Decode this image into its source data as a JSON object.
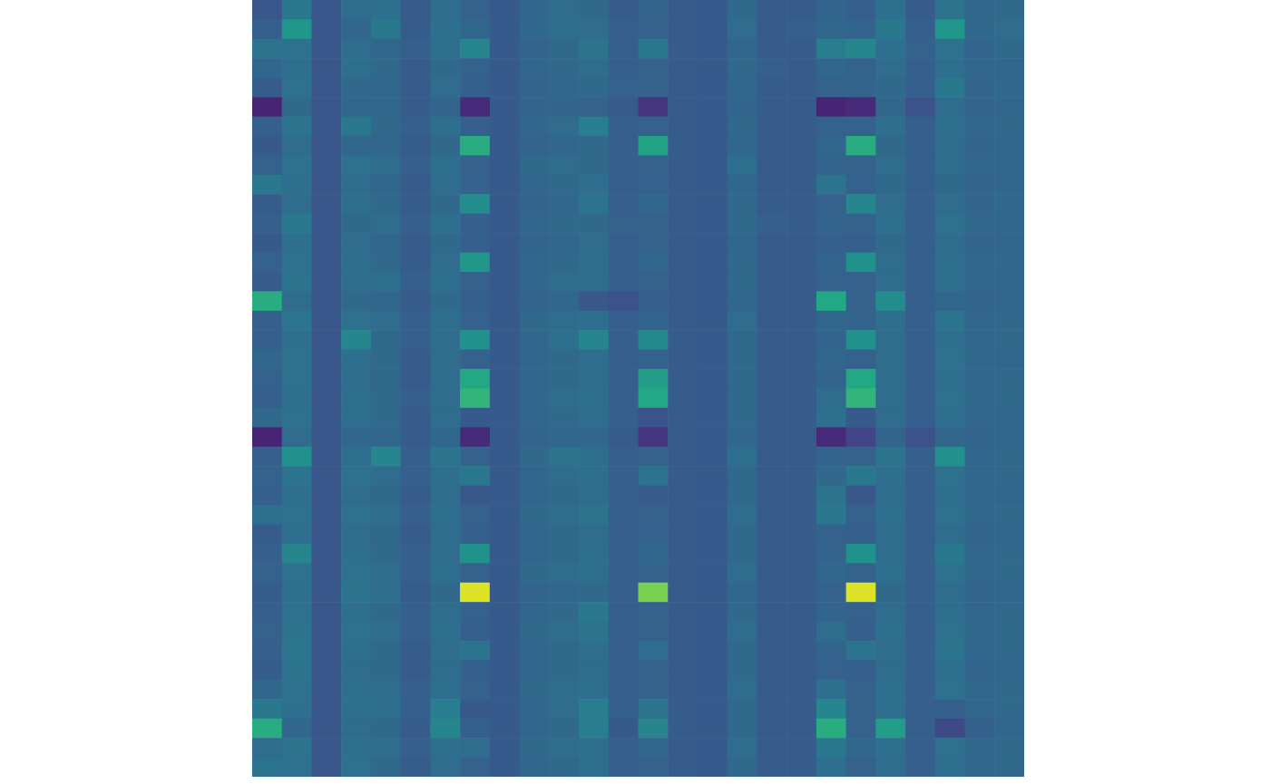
{
  "chart_data": {
    "type": "heatmap",
    "tick_labels": false,
    "zlim": [
      0,
      1
    ],
    "cells": [
      [
        0.27,
        0.4,
        0.27,
        0.35,
        0.36,
        0.29,
        0.35,
        0.31,
        0.28,
        0.33,
        0.35,
        0.34,
        0.29,
        0.32,
        0.29,
        0.28,
        0.34,
        0.29,
        0.29,
        0.32,
        0.3,
        0.36,
        0.29,
        0.38,
        0.33,
        0.34
      ],
      [
        0.3,
        0.52,
        0.27,
        0.33,
        0.4,
        0.29,
        0.36,
        0.33,
        0.28,
        0.34,
        0.36,
        0.35,
        0.3,
        0.31,
        0.29,
        0.28,
        0.35,
        0.29,
        0.3,
        0.33,
        0.32,
        0.4,
        0.3,
        0.52,
        0.34,
        0.35
      ],
      [
        0.38,
        0.37,
        0.27,
        0.35,
        0.33,
        0.3,
        0.36,
        0.45,
        0.28,
        0.32,
        0.34,
        0.38,
        0.3,
        0.4,
        0.29,
        0.28,
        0.33,
        0.29,
        0.29,
        0.42,
        0.45,
        0.36,
        0.31,
        0.37,
        0.32,
        0.34
      ],
      [
        0.33,
        0.36,
        0.27,
        0.36,
        0.34,
        0.29,
        0.34,
        0.31,
        0.28,
        0.33,
        0.34,
        0.35,
        0.3,
        0.31,
        0.29,
        0.28,
        0.34,
        0.3,
        0.29,
        0.33,
        0.31,
        0.35,
        0.3,
        0.36,
        0.33,
        0.33
      ],
      [
        0.29,
        0.37,
        0.27,
        0.34,
        0.33,
        0.29,
        0.35,
        0.3,
        0.28,
        0.32,
        0.33,
        0.34,
        0.31,
        0.31,
        0.29,
        0.28,
        0.33,
        0.29,
        0.29,
        0.31,
        0.32,
        0.34,
        0.3,
        0.4,
        0.32,
        0.34
      ],
      [
        0.1,
        0.34,
        0.27,
        0.33,
        0.33,
        0.29,
        0.32,
        0.12,
        0.28,
        0.32,
        0.32,
        0.31,
        0.29,
        0.15,
        0.29,
        0.28,
        0.32,
        0.29,
        0.29,
        0.1,
        0.12,
        0.33,
        0.25,
        0.35,
        0.32,
        0.33
      ],
      [
        0.3,
        0.38,
        0.27,
        0.4,
        0.34,
        0.3,
        0.36,
        0.3,
        0.28,
        0.33,
        0.35,
        0.42,
        0.3,
        0.31,
        0.29,
        0.28,
        0.34,
        0.29,
        0.29,
        0.31,
        0.31,
        0.36,
        0.3,
        0.36,
        0.33,
        0.34
      ],
      [
        0.28,
        0.35,
        0.27,
        0.33,
        0.33,
        0.29,
        0.34,
        0.62,
        0.28,
        0.32,
        0.33,
        0.34,
        0.3,
        0.58,
        0.29,
        0.28,
        0.33,
        0.29,
        0.29,
        0.33,
        0.62,
        0.34,
        0.3,
        0.35,
        0.32,
        0.33
      ],
      [
        0.31,
        0.37,
        0.27,
        0.37,
        0.35,
        0.3,
        0.36,
        0.31,
        0.28,
        0.34,
        0.35,
        0.34,
        0.3,
        0.31,
        0.29,
        0.28,
        0.36,
        0.29,
        0.29,
        0.32,
        0.31,
        0.35,
        0.3,
        0.35,
        0.33,
        0.33
      ],
      [
        0.4,
        0.36,
        0.27,
        0.35,
        0.33,
        0.29,
        0.35,
        0.31,
        0.28,
        0.33,
        0.34,
        0.36,
        0.3,
        0.31,
        0.29,
        0.28,
        0.33,
        0.29,
        0.29,
        0.38,
        0.31,
        0.34,
        0.3,
        0.34,
        0.32,
        0.33
      ],
      [
        0.29,
        0.35,
        0.27,
        0.36,
        0.34,
        0.29,
        0.34,
        0.48,
        0.28,
        0.32,
        0.33,
        0.38,
        0.3,
        0.33,
        0.29,
        0.28,
        0.34,
        0.29,
        0.29,
        0.31,
        0.45,
        0.35,
        0.3,
        0.35,
        0.32,
        0.34
      ],
      [
        0.3,
        0.4,
        0.27,
        0.34,
        0.35,
        0.3,
        0.36,
        0.3,
        0.28,
        0.33,
        0.34,
        0.34,
        0.31,
        0.31,
        0.29,
        0.28,
        0.34,
        0.3,
        0.29,
        0.32,
        0.31,
        0.36,
        0.3,
        0.37,
        0.33,
        0.33
      ],
      [
        0.28,
        0.36,
        0.27,
        0.35,
        0.33,
        0.29,
        0.34,
        0.3,
        0.28,
        0.32,
        0.33,
        0.35,
        0.3,
        0.31,
        0.29,
        0.28,
        0.33,
        0.29,
        0.29,
        0.3,
        0.3,
        0.34,
        0.3,
        0.35,
        0.32,
        0.33
      ],
      [
        0.31,
        0.37,
        0.27,
        0.36,
        0.34,
        0.29,
        0.35,
        0.52,
        0.28,
        0.33,
        0.34,
        0.36,
        0.3,
        0.33,
        0.29,
        0.28,
        0.34,
        0.29,
        0.29,
        0.32,
        0.5,
        0.35,
        0.3,
        0.36,
        0.33,
        0.34
      ],
      [
        0.29,
        0.38,
        0.27,
        0.35,
        0.36,
        0.3,
        0.36,
        0.31,
        0.28,
        0.33,
        0.35,
        0.35,
        0.3,
        0.31,
        0.29,
        0.28,
        0.34,
        0.29,
        0.29,
        0.31,
        0.31,
        0.35,
        0.3,
        0.36,
        0.33,
        0.33
      ],
      [
        0.62,
        0.35,
        0.27,
        0.34,
        0.33,
        0.29,
        0.34,
        0.3,
        0.28,
        0.32,
        0.33,
        0.27,
        0.25,
        0.3,
        0.29,
        0.28,
        0.33,
        0.29,
        0.29,
        0.6,
        0.31,
        0.48,
        0.3,
        0.33,
        0.32,
        0.33
      ],
      [
        0.3,
        0.39,
        0.27,
        0.37,
        0.35,
        0.3,
        0.36,
        0.31,
        0.28,
        0.34,
        0.35,
        0.36,
        0.3,
        0.32,
        0.29,
        0.28,
        0.35,
        0.29,
        0.29,
        0.33,
        0.32,
        0.36,
        0.3,
        0.38,
        0.33,
        0.34
      ],
      [
        0.3,
        0.36,
        0.27,
        0.45,
        0.34,
        0.3,
        0.35,
        0.5,
        0.28,
        0.33,
        0.36,
        0.45,
        0.3,
        0.47,
        0.29,
        0.28,
        0.34,
        0.29,
        0.29,
        0.32,
        0.5,
        0.35,
        0.3,
        0.36,
        0.33,
        0.34
      ],
      [
        0.33,
        0.37,
        0.27,
        0.36,
        0.34,
        0.29,
        0.35,
        0.31,
        0.28,
        0.33,
        0.34,
        0.35,
        0.3,
        0.31,
        0.29,
        0.28,
        0.34,
        0.29,
        0.29,
        0.33,
        0.31,
        0.35,
        0.3,
        0.37,
        0.33,
        0.33
      ],
      [
        0.31,
        0.37,
        0.27,
        0.35,
        0.34,
        0.29,
        0.35,
        0.6,
        0.28,
        0.33,
        0.34,
        0.35,
        0.3,
        0.55,
        0.29,
        0.28,
        0.34,
        0.29,
        0.29,
        0.32,
        0.6,
        0.35,
        0.3,
        0.36,
        0.33,
        0.34
      ],
      [
        0.3,
        0.36,
        0.27,
        0.36,
        0.34,
        0.3,
        0.35,
        0.65,
        0.28,
        0.33,
        0.35,
        0.36,
        0.3,
        0.6,
        0.29,
        0.28,
        0.34,
        0.29,
        0.29,
        0.35,
        0.65,
        0.35,
        0.3,
        0.37,
        0.33,
        0.34
      ],
      [
        0.34,
        0.37,
        0.27,
        0.36,
        0.34,
        0.29,
        0.35,
        0.28,
        0.28,
        0.33,
        0.34,
        0.35,
        0.3,
        0.25,
        0.29,
        0.28,
        0.34,
        0.29,
        0.29,
        0.36,
        0.28,
        0.35,
        0.3,
        0.36,
        0.33,
        0.33
      ],
      [
        0.1,
        0.35,
        0.27,
        0.33,
        0.33,
        0.29,
        0.33,
        0.12,
        0.28,
        0.32,
        0.33,
        0.33,
        0.29,
        0.15,
        0.29,
        0.28,
        0.33,
        0.29,
        0.29,
        0.12,
        0.2,
        0.32,
        0.25,
        0.33,
        0.32,
        0.33
      ],
      [
        0.3,
        0.5,
        0.27,
        0.36,
        0.45,
        0.3,
        0.38,
        0.31,
        0.28,
        0.34,
        0.38,
        0.36,
        0.3,
        0.31,
        0.29,
        0.28,
        0.36,
        0.29,
        0.29,
        0.32,
        0.31,
        0.38,
        0.3,
        0.5,
        0.33,
        0.34
      ],
      [
        0.31,
        0.38,
        0.27,
        0.37,
        0.35,
        0.3,
        0.36,
        0.4,
        0.28,
        0.33,
        0.35,
        0.36,
        0.3,
        0.38,
        0.29,
        0.28,
        0.34,
        0.29,
        0.29,
        0.34,
        0.4,
        0.36,
        0.3,
        0.37,
        0.33,
        0.34
      ],
      [
        0.3,
        0.36,
        0.27,
        0.35,
        0.34,
        0.29,
        0.35,
        0.27,
        0.28,
        0.33,
        0.34,
        0.35,
        0.3,
        0.29,
        0.29,
        0.28,
        0.34,
        0.29,
        0.29,
        0.38,
        0.27,
        0.35,
        0.3,
        0.36,
        0.33,
        0.33
      ],
      [
        0.36,
        0.37,
        0.27,
        0.37,
        0.35,
        0.3,
        0.36,
        0.31,
        0.28,
        0.34,
        0.35,
        0.38,
        0.3,
        0.31,
        0.29,
        0.28,
        0.35,
        0.29,
        0.29,
        0.4,
        0.31,
        0.36,
        0.3,
        0.37,
        0.33,
        0.34
      ],
      [
        0.29,
        0.36,
        0.27,
        0.35,
        0.34,
        0.29,
        0.35,
        0.3,
        0.28,
        0.33,
        0.34,
        0.35,
        0.3,
        0.31,
        0.29,
        0.28,
        0.34,
        0.29,
        0.29,
        0.31,
        0.3,
        0.35,
        0.3,
        0.35,
        0.32,
        0.33
      ],
      [
        0.3,
        0.45,
        0.27,
        0.36,
        0.34,
        0.3,
        0.35,
        0.5,
        0.28,
        0.33,
        0.34,
        0.36,
        0.3,
        0.33,
        0.29,
        0.28,
        0.34,
        0.29,
        0.29,
        0.32,
        0.5,
        0.35,
        0.3,
        0.4,
        0.33,
        0.34
      ],
      [
        0.31,
        0.37,
        0.27,
        0.37,
        0.35,
        0.3,
        0.36,
        0.31,
        0.28,
        0.34,
        0.35,
        0.36,
        0.3,
        0.31,
        0.29,
        0.28,
        0.35,
        0.29,
        0.29,
        0.33,
        0.31,
        0.36,
        0.3,
        0.37,
        0.33,
        0.34
      ],
      [
        0.29,
        0.36,
        0.27,
        0.38,
        0.36,
        0.29,
        0.34,
        0.95,
        0.28,
        0.32,
        0.33,
        0.34,
        0.3,
        0.8,
        0.29,
        0.28,
        0.33,
        0.29,
        0.29,
        0.31,
        0.95,
        0.34,
        0.3,
        0.35,
        0.32,
        0.33
      ],
      [
        0.3,
        0.37,
        0.27,
        0.36,
        0.34,
        0.3,
        0.35,
        0.31,
        0.28,
        0.33,
        0.34,
        0.4,
        0.3,
        0.31,
        0.29,
        0.28,
        0.34,
        0.29,
        0.29,
        0.32,
        0.31,
        0.35,
        0.3,
        0.36,
        0.33,
        0.34
      ],
      [
        0.31,
        0.38,
        0.27,
        0.37,
        0.35,
        0.3,
        0.36,
        0.3,
        0.28,
        0.34,
        0.35,
        0.38,
        0.3,
        0.31,
        0.29,
        0.28,
        0.35,
        0.29,
        0.29,
        0.35,
        0.3,
        0.36,
        0.3,
        0.37,
        0.33,
        0.34
      ],
      [
        0.3,
        0.39,
        0.27,
        0.36,
        0.34,
        0.29,
        0.35,
        0.38,
        0.28,
        0.33,
        0.34,
        0.36,
        0.3,
        0.35,
        0.29,
        0.28,
        0.34,
        0.29,
        0.29,
        0.32,
        0.38,
        0.35,
        0.3,
        0.38,
        0.33,
        0.34
      ],
      [
        0.29,
        0.38,
        0.27,
        0.35,
        0.34,
        0.29,
        0.35,
        0.3,
        0.28,
        0.33,
        0.34,
        0.35,
        0.3,
        0.31,
        0.29,
        0.28,
        0.34,
        0.29,
        0.29,
        0.31,
        0.3,
        0.35,
        0.3,
        0.36,
        0.32,
        0.33
      ],
      [
        0.33,
        0.37,
        0.27,
        0.36,
        0.35,
        0.3,
        0.36,
        0.31,
        0.28,
        0.34,
        0.35,
        0.36,
        0.3,
        0.31,
        0.29,
        0.28,
        0.35,
        0.29,
        0.29,
        0.36,
        0.31,
        0.36,
        0.3,
        0.37,
        0.33,
        0.34
      ],
      [
        0.4,
        0.36,
        0.27,
        0.36,
        0.36,
        0.3,
        0.42,
        0.28,
        0.28,
        0.33,
        0.35,
        0.42,
        0.3,
        0.38,
        0.29,
        0.28,
        0.34,
        0.29,
        0.29,
        0.45,
        0.31,
        0.36,
        0.3,
        0.3,
        0.33,
        0.34
      ],
      [
        0.62,
        0.33,
        0.27,
        0.35,
        0.34,
        0.29,
        0.45,
        0.3,
        0.28,
        0.33,
        0.34,
        0.42,
        0.28,
        0.45,
        0.29,
        0.28,
        0.34,
        0.29,
        0.29,
        0.62,
        0.31,
        0.55,
        0.3,
        0.22,
        0.3,
        0.33
      ],
      [
        0.35,
        0.38,
        0.27,
        0.36,
        0.35,
        0.3,
        0.36,
        0.35,
        0.28,
        0.34,
        0.35,
        0.36,
        0.3,
        0.33,
        0.29,
        0.28,
        0.35,
        0.29,
        0.29,
        0.4,
        0.33,
        0.36,
        0.3,
        0.37,
        0.33,
        0.34
      ],
      [
        0.38,
        0.37,
        0.27,
        0.37,
        0.34,
        0.29,
        0.35,
        0.31,
        0.28,
        0.33,
        0.34,
        0.36,
        0.3,
        0.31,
        0.29,
        0.28,
        0.34,
        0.29,
        0.29,
        0.36,
        0.31,
        0.35,
        0.3,
        0.36,
        0.33,
        0.34
      ]
    ]
  }
}
